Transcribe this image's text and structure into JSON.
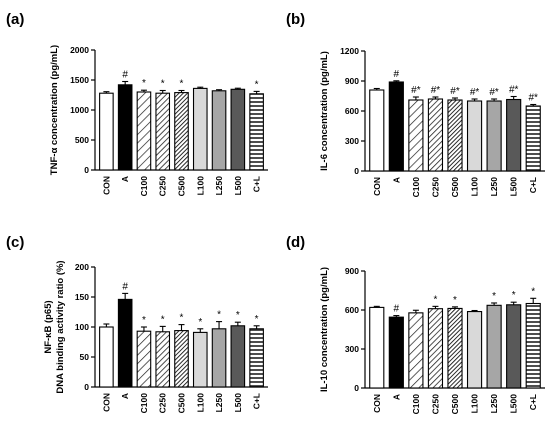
{
  "chart_data": [
    {
      "panel_label": "(a)",
      "type": "bar",
      "ylabel": "TNF-α concentration (pg/mL)",
      "ylim": [
        0,
        2000
      ],
      "yticks": [
        "0",
        "500",
        "1000",
        "1500",
        "2000"
      ],
      "ytick_values": [
        0,
        500,
        1000,
        1500,
        2000
      ],
      "categories": [
        "CON",
        "A",
        "C100",
        "C250",
        "C500",
        "L100",
        "L250",
        "L500",
        "C+L"
      ],
      "values": [
        1280,
        1420,
        1300,
        1280,
        1290,
        1360,
        1320,
        1345,
        1270
      ],
      "errors": [
        25,
        55,
        30,
        45,
        35,
        20,
        18,
        18,
        40
      ],
      "marks": [
        "",
        "#",
        "*",
        "*",
        "*",
        "",
        "",
        "",
        "*"
      ],
      "grid": false
    },
    {
      "panel_label": "(b)",
      "type": "bar",
      "ylabel": "IL-6 concentration (pg/mL)",
      "ylim": [
        0,
        1200
      ],
      "yticks": [
        "0",
        "300",
        "600",
        "900",
        "1200"
      ],
      "ytick_values": [
        0,
        300,
        600,
        900,
        1200
      ],
      "categories": [
        "CON",
        "A",
        "C100",
        "C250",
        "C500",
        "L100",
        "L250",
        "L500",
        "C+L"
      ],
      "values": [
        810,
        890,
        710,
        720,
        710,
        700,
        700,
        715,
        650
      ],
      "errors": [
        15,
        12,
        30,
        20,
        20,
        20,
        20,
        30,
        15
      ],
      "marks": [
        "",
        "#",
        "#*",
        "#*",
        "#*",
        "#*",
        "#*",
        "#*",
        "#*"
      ],
      "grid": false
    },
    {
      "panel_label": "(c)",
      "type": "bar",
      "ylabel": "NF-κB (p65)\nDNA binding activity ratio (%)",
      "ylim": [
        0,
        200
      ],
      "yticks": [
        "0",
        "50",
        "100",
        "150",
        "200"
      ],
      "ytick_values": [
        0,
        50,
        100,
        150,
        200
      ],
      "categories": [
        "CON",
        "A",
        "C100",
        "C250",
        "C500",
        "L100",
        "L250",
        "L500",
        "C+L"
      ],
      "values": [
        100,
        146,
        93,
        92,
        94,
        91,
        97,
        102,
        97
      ],
      "errors": [
        5,
        10,
        7,
        9,
        10,
        6,
        12,
        6,
        5
      ],
      "marks": [
        "",
        "#",
        "*",
        "*",
        "*",
        "*",
        "*",
        "*",
        "*"
      ],
      "grid": false
    },
    {
      "panel_label": "(d)",
      "type": "bar",
      "ylabel": "IL-10 concentration (pg/mL)",
      "ylim": [
        0,
        900
      ],
      "yticks": [
        "0",
        "300",
        "600",
        "900"
      ],
      "ytick_values": [
        0,
        300,
        600,
        900
      ],
      "categories": [
        "CON",
        "A",
        "C100",
        "C250",
        "C500",
        "L100",
        "L250",
        "L500",
        "C+L"
      ],
      "values": [
        620,
        545,
        578,
        610,
        612,
        588,
        636,
        640,
        650
      ],
      "errors": [
        8,
        12,
        20,
        18,
        12,
        8,
        18,
        20,
        40
      ],
      "marks": [
        "",
        "#",
        "",
        "*",
        "*",
        "",
        "*",
        "*",
        "*"
      ],
      "grid": false
    }
  ],
  "bar_styles": [
    {
      "fill": "#ffffff",
      "pattern": "none"
    },
    {
      "fill": "#000000",
      "pattern": "none"
    },
    {
      "fill": "#ffffff",
      "pattern": "diag-fine"
    },
    {
      "fill": "#ffffff",
      "pattern": "diag-medium"
    },
    {
      "fill": "#ffffff",
      "pattern": "diag-dense"
    },
    {
      "fill": "#d9d9d9",
      "pattern": "none"
    },
    {
      "fill": "#a6a6a6",
      "pattern": "none"
    },
    {
      "fill": "#595959",
      "pattern": "none"
    },
    {
      "fill": "#ffffff",
      "pattern": "horizontal"
    }
  ]
}
